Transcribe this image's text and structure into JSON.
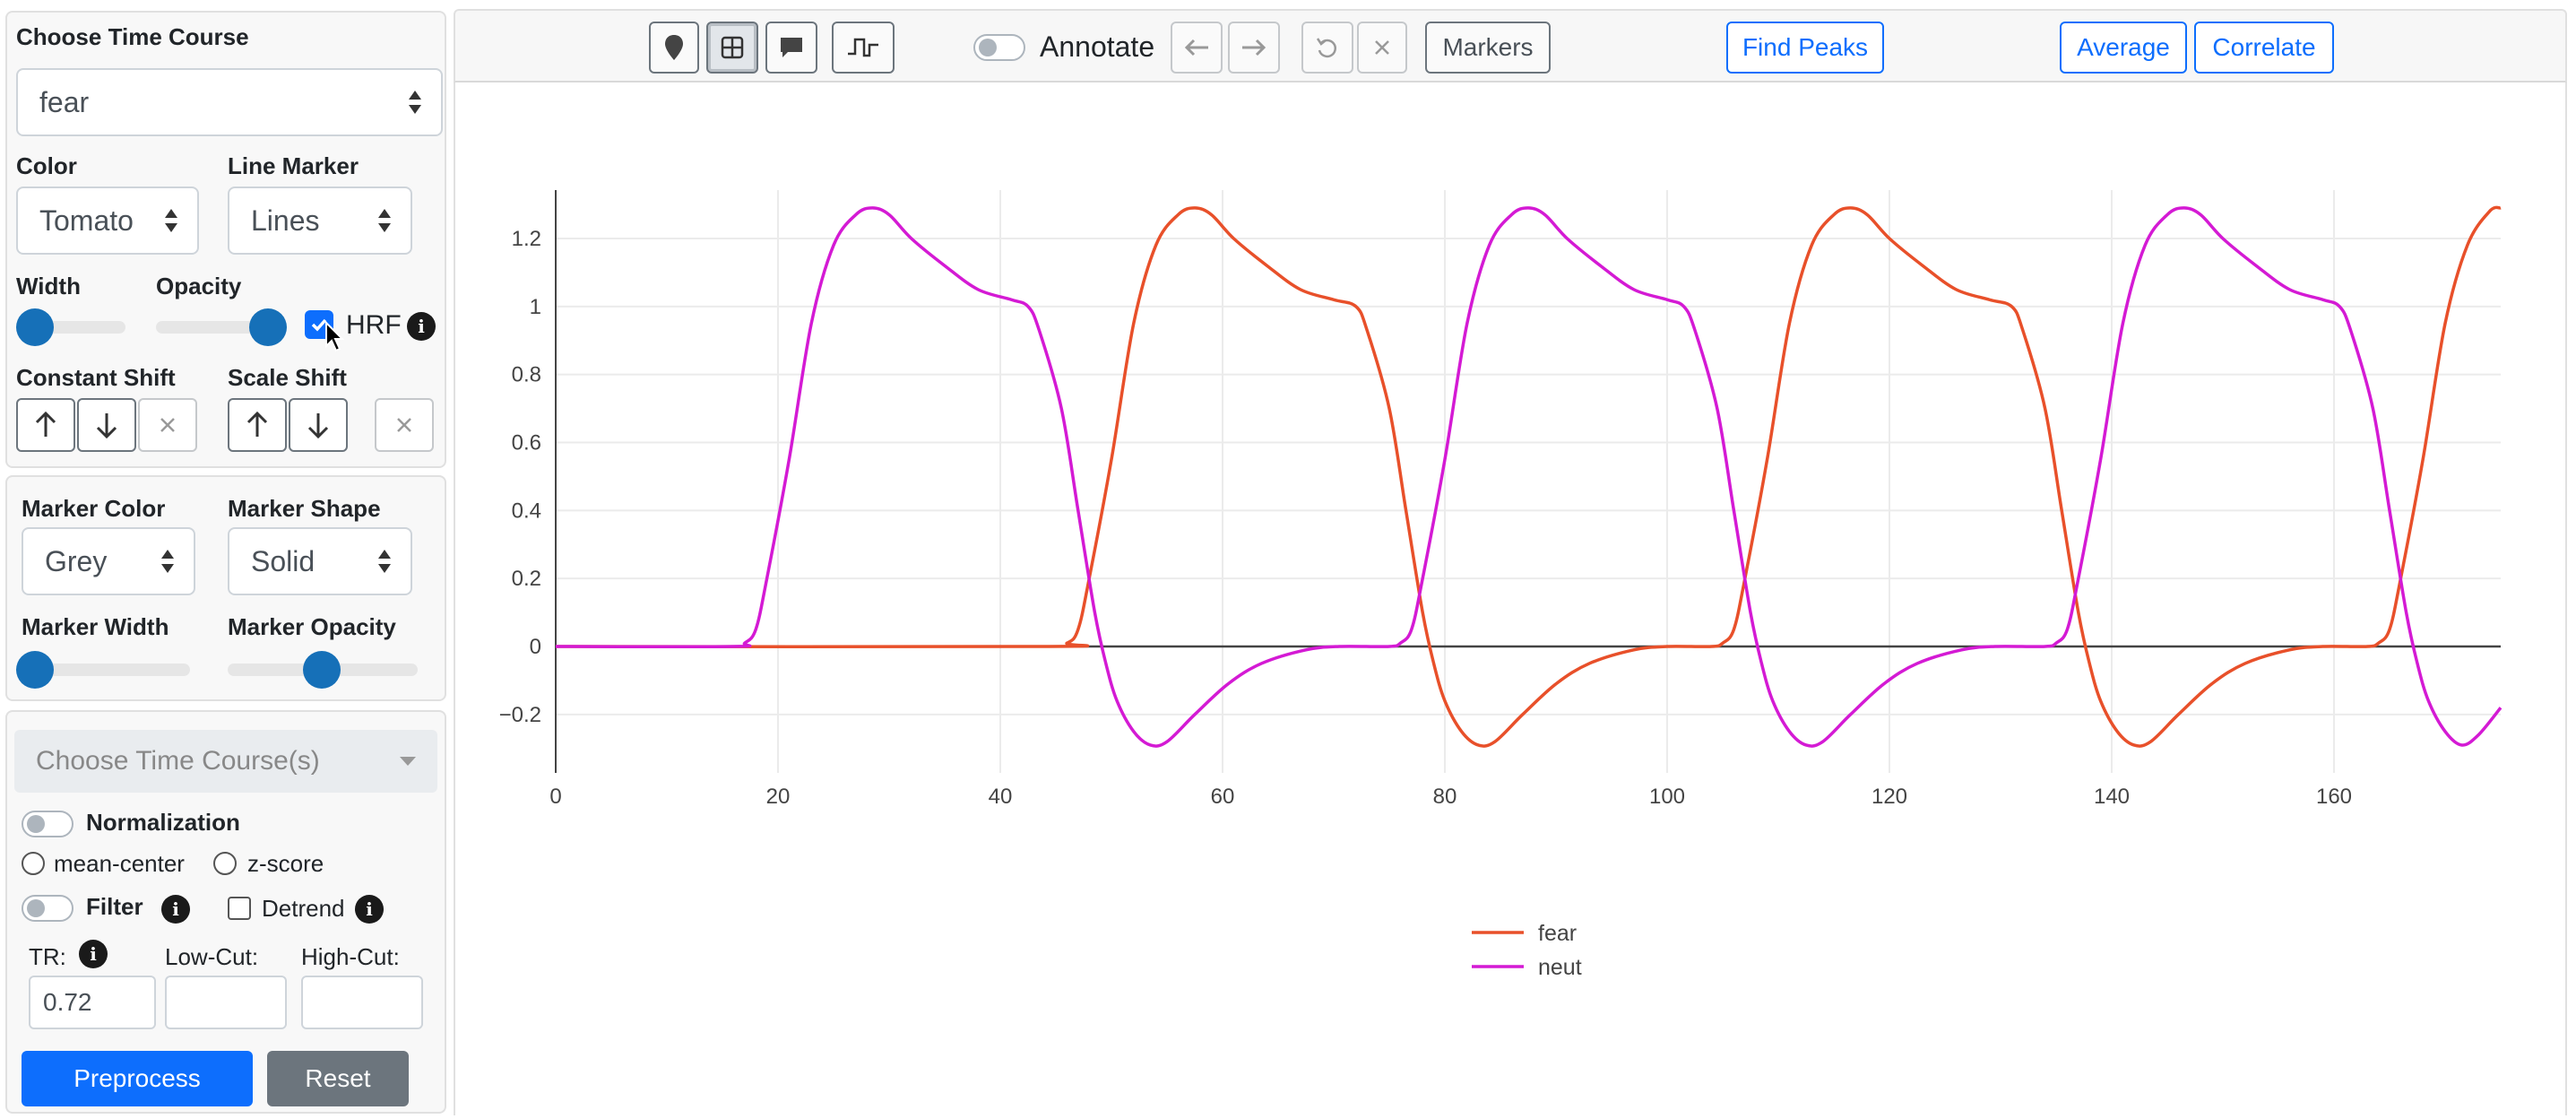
{
  "sidebar": {
    "time_course": {
      "label": "Choose Time Course",
      "value": "fear",
      "color_label": "Color",
      "color_value": "Tomato",
      "marker_label": "Line Marker",
      "marker_value": "Lines",
      "width_label": "Width",
      "width_level": 0.0,
      "opacity_label": "Opacity",
      "opacity_level": 1.0,
      "hrf_label": "HRF",
      "hrf_checked": true,
      "constant_shift_label": "Constant Shift",
      "scale_shift_label": "Scale Shift"
    },
    "markers": {
      "color_label": "Marker Color",
      "color_value": "Grey",
      "shape_label": "Marker Shape",
      "shape_value": "Solid",
      "width_label": "Marker Width",
      "width_level": 0.0,
      "opacity_label": "Marker Opacity",
      "opacity_level": 0.5
    },
    "preprocess": {
      "select_placeholder": "Choose Time Course(s)",
      "normalization_label": "Normalization",
      "mean_center_label": "mean-center",
      "zscore_label": "z-score",
      "filter_label": "Filter",
      "detrend_label": "Detrend",
      "tr_label": "TR:",
      "tr_value": "0.72",
      "lowcut_label": "Low-Cut:",
      "highcut_label": "High-Cut:",
      "preprocess_button": "Preprocess",
      "reset_button": "Reset"
    }
  },
  "toolbar": {
    "annotate_label": "Annotate",
    "markers_label": "Markers",
    "find_peaks_label": "Find Peaks",
    "average_label": "Average",
    "correlate_label": "Correlate"
  },
  "icons": {
    "pin": "map-pin-icon",
    "grid": "grid-icon",
    "comment": "comment-icon",
    "signal": "step-signal-icon",
    "left": "arrow-left-icon",
    "right": "arrow-right-icon",
    "undo": "undo-icon",
    "close": "close-icon",
    "info": "info-icon",
    "up": "arrow-up-icon",
    "down": "arrow-down-icon"
  },
  "colors": {
    "accent": "#0d6efd",
    "slider_knob": "#1670b8",
    "fear": "#e8502a",
    "neut": "#d41ad4"
  },
  "chart_data": {
    "type": "line",
    "xlim": [
      0,
      175
    ],
    "ylim": [
      -0.3,
      1.35
    ],
    "xticks": [
      "0",
      "20",
      "40",
      "60",
      "80",
      "100",
      "120",
      "140",
      "160"
    ],
    "yticks": [
      "−0.2",
      "0",
      "0.2",
      "0.4",
      "0.6",
      "0.8",
      "1",
      "1.2"
    ],
    "grid": true,
    "legend_position": "bottom-center",
    "series": [
      {
        "name": "fear",
        "color": "#e8502a",
        "points": [
          [
            0,
            0
          ],
          [
            44,
            0
          ],
          [
            46,
            0.01
          ],
          [
            47,
            0.05
          ],
          [
            48,
            0.2
          ],
          [
            50,
            0.55
          ],
          [
            52,
            0.95
          ],
          [
            54,
            1.18
          ],
          [
            56,
            1.27
          ],
          [
            57.5,
            1.29
          ],
          [
            59,
            1.27
          ],
          [
            61,
            1.2
          ],
          [
            64,
            1.12
          ],
          [
            67,
            1.05
          ],
          [
            70,
            1.02
          ],
          [
            72,
            1.0
          ],
          [
            73,
            0.93
          ],
          [
            75,
            0.7
          ],
          [
            76.5,
            0.4
          ],
          [
            78,
            0.1
          ],
          [
            79,
            -0.05
          ],
          [
            80,
            -0.16
          ],
          [
            81.5,
            -0.25
          ],
          [
            83,
            -0.29
          ],
          [
            84.5,
            -0.28
          ],
          [
            87,
            -0.2
          ],
          [
            90,
            -0.11
          ],
          [
            93,
            -0.05
          ],
          [
            97,
            -0.01
          ],
          [
            100,
            0
          ],
          [
            104,
            0
          ],
          [
            105,
            0.01
          ],
          [
            106,
            0.05
          ],
          [
            107,
            0.2
          ],
          [
            109,
            0.55
          ],
          [
            111,
            0.95
          ],
          [
            113,
            1.18
          ],
          [
            115,
            1.27
          ],
          [
            116.5,
            1.29
          ],
          [
            118,
            1.27
          ],
          [
            120,
            1.2
          ],
          [
            123,
            1.12
          ],
          [
            126,
            1.05
          ],
          [
            129,
            1.02
          ],
          [
            131,
            1.0
          ],
          [
            132,
            0.93
          ],
          [
            134,
            0.7
          ],
          [
            135.5,
            0.4
          ],
          [
            137,
            0.1
          ],
          [
            138,
            -0.05
          ],
          [
            139,
            -0.16
          ],
          [
            140.5,
            -0.25
          ],
          [
            142,
            -0.29
          ],
          [
            143.5,
            -0.28
          ],
          [
            146,
            -0.2
          ],
          [
            149,
            -0.11
          ],
          [
            152,
            -0.05
          ],
          [
            156,
            -0.01
          ],
          [
            159,
            0
          ],
          [
            163,
            0
          ],
          [
            164,
            0.01
          ],
          [
            165,
            0.05
          ],
          [
            166,
            0.2
          ],
          [
            168,
            0.55
          ],
          [
            170,
            0.95
          ],
          [
            172,
            1.18
          ],
          [
            174,
            1.28
          ],
          [
            175,
            1.29
          ]
        ]
      },
      {
        "name": "neut",
        "color": "#d41ad4",
        "points": [
          [
            0,
            0
          ],
          [
            16,
            0
          ],
          [
            17,
            0.01
          ],
          [
            18,
            0.05
          ],
          [
            19,
            0.2
          ],
          [
            21,
            0.55
          ],
          [
            23,
            0.95
          ],
          [
            25,
            1.18
          ],
          [
            27,
            1.27
          ],
          [
            28.5,
            1.29
          ],
          [
            30,
            1.27
          ],
          [
            32,
            1.2
          ],
          [
            35,
            1.12
          ],
          [
            38,
            1.05
          ],
          [
            41,
            1.02
          ],
          [
            42.5,
            1.0
          ],
          [
            43.5,
            0.93
          ],
          [
            45.5,
            0.7
          ],
          [
            47,
            0.4
          ],
          [
            48.5,
            0.1
          ],
          [
            49.5,
            -0.05
          ],
          [
            50.5,
            -0.16
          ],
          [
            52,
            -0.25
          ],
          [
            53.5,
            -0.29
          ],
          [
            55,
            -0.28
          ],
          [
            57.5,
            -0.2
          ],
          [
            60.5,
            -0.11
          ],
          [
            63.5,
            -0.05
          ],
          [
            67.5,
            -0.01
          ],
          [
            70.5,
            0
          ],
          [
            75,
            0
          ],
          [
            76,
            0.01
          ],
          [
            77,
            0.05
          ],
          [
            78,
            0.2
          ],
          [
            80,
            0.55
          ],
          [
            82,
            0.95
          ],
          [
            84,
            1.18
          ],
          [
            86,
            1.27
          ],
          [
            87.5,
            1.29
          ],
          [
            89,
            1.27
          ],
          [
            91,
            1.2
          ],
          [
            94,
            1.12
          ],
          [
            97,
            1.05
          ],
          [
            100,
            1.02
          ],
          [
            101.5,
            1.0
          ],
          [
            102.5,
            0.93
          ],
          [
            104.5,
            0.7
          ],
          [
            106,
            0.4
          ],
          [
            107.5,
            0.1
          ],
          [
            108.5,
            -0.05
          ],
          [
            109.5,
            -0.16
          ],
          [
            111,
            -0.25
          ],
          [
            112.5,
            -0.29
          ],
          [
            114,
            -0.28
          ],
          [
            116.5,
            -0.2
          ],
          [
            119.5,
            -0.11
          ],
          [
            122.5,
            -0.05
          ],
          [
            126.5,
            -0.01
          ],
          [
            129.5,
            0
          ],
          [
            134,
            0
          ],
          [
            135,
            0.01
          ],
          [
            136,
            0.05
          ],
          [
            137,
            0.2
          ],
          [
            139,
            0.55
          ],
          [
            141,
            0.95
          ],
          [
            143,
            1.18
          ],
          [
            145,
            1.27
          ],
          [
            146.5,
            1.29
          ],
          [
            148,
            1.27
          ],
          [
            150,
            1.2
          ],
          [
            153,
            1.12
          ],
          [
            156,
            1.05
          ],
          [
            159,
            1.02
          ],
          [
            160.5,
            1.0
          ],
          [
            161.5,
            0.93
          ],
          [
            163.5,
            0.7
          ],
          [
            165,
            0.4
          ],
          [
            166.5,
            0.1
          ],
          [
            167.5,
            -0.05
          ],
          [
            168.5,
            -0.16
          ],
          [
            170,
            -0.25
          ],
          [
            171.5,
            -0.29
          ],
          [
            173,
            -0.26
          ],
          [
            175,
            -0.18
          ]
        ]
      }
    ]
  }
}
